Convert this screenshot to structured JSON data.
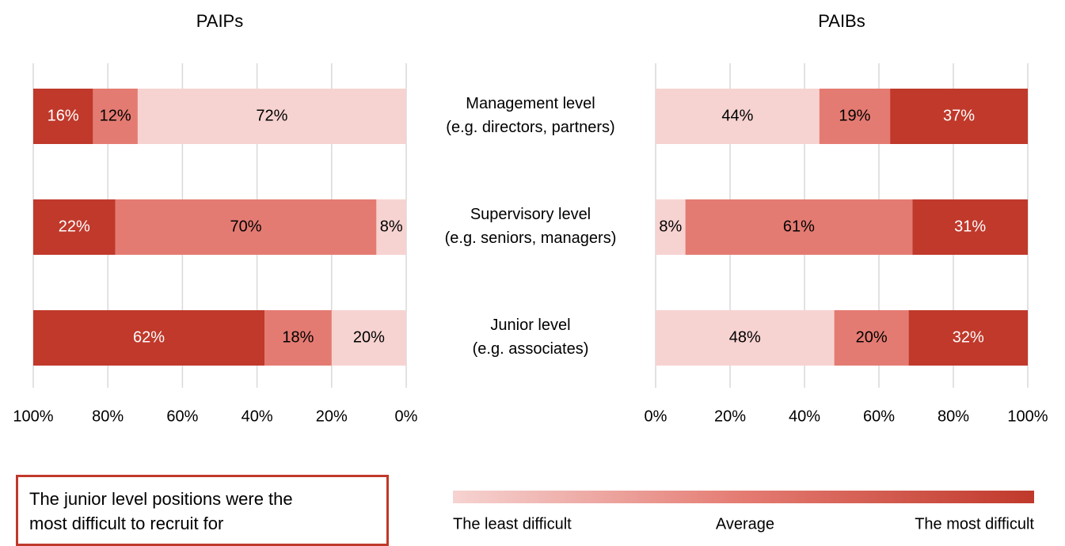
{
  "chart_data": [
    {
      "type": "stacked-bar-h",
      "title": "PAIPs",
      "categories": [
        [
          "Management level",
          "(e.g. directors, partners)"
        ],
        [
          "Supervisory level",
          "(e.g. seniors, managers)"
        ],
        [
          "Junior level",
          "(e.g. associates)"
        ]
      ],
      "series": [
        {
          "name": "The least difficult",
          "color": "#f6d3d1",
          "values": [
            72,
            8,
            20
          ],
          "value_labels": [
            "72%",
            "8%",
            "20%"
          ]
        },
        {
          "name": "Average",
          "color": "#e47b72",
          "values": [
            12,
            70,
            18
          ],
          "value_labels": [
            "12%",
            "70%",
            "18%"
          ]
        },
        {
          "name": "The most difficult",
          "color": "#c0392b",
          "values": [
            16,
            22,
            62
          ],
          "value_labels": [
            "16%",
            "22%",
            "62%"
          ]
        }
      ],
      "xlim": [
        100,
        0
      ],
      "xticks": [
        {
          "value": 100,
          "label": "100%"
        },
        {
          "value": 80,
          "label": "80%"
        },
        {
          "value": 60,
          "label": "60%"
        },
        {
          "value": 40,
          "label": "40%"
        },
        {
          "value": 20,
          "label": "20%"
        },
        {
          "value": 0,
          "label": "0%"
        }
      ],
      "grid": true
    },
    {
      "type": "stacked-bar-h",
      "title": "PAIBs",
      "series": [
        {
          "color": "#f6d3d1",
          "values": [
            44,
            8,
            48
          ],
          "value_labels": [
            "44%",
            "8%",
            "48%"
          ]
        },
        {
          "color": "#e47b72",
          "values": [
            19,
            61,
            20
          ],
          "value_labels": [
            "19%",
            "61%",
            "20%"
          ]
        },
        {
          "color": "#c0392b",
          "values": [
            37,
            31,
            32
          ],
          "value_labels": [
            "37%",
            "31%",
            "32%"
          ]
        }
      ],
      "xlim": [
        0,
        100
      ],
      "xticks": [
        {
          "value": 0,
          "label": "0%"
        },
        {
          "value": 20,
          "label": "20%"
        },
        {
          "value": 40,
          "label": "40%"
        },
        {
          "value": 60,
          "label": "60%"
        },
        {
          "value": 80,
          "label": "80%"
        },
        {
          "value": 100,
          "label": "100%"
        }
      ],
      "grid": true
    }
  ],
  "annotation": "The junior level positions were the most difficult to recruit for"
}
